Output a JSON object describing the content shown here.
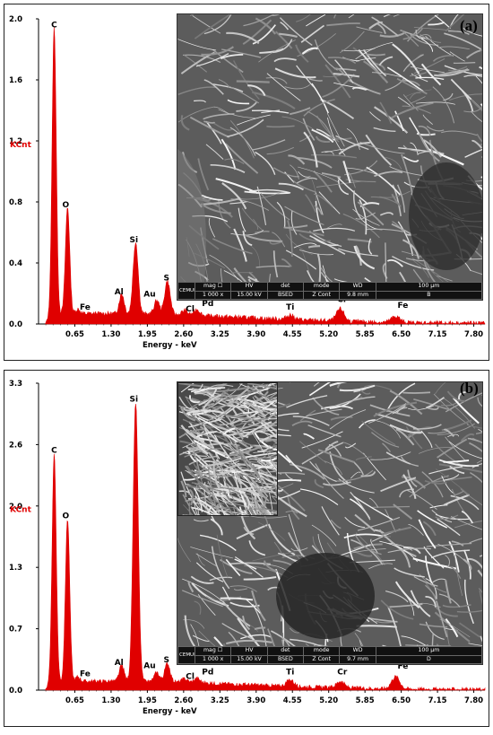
{
  "chart_data": [
    {
      "type": "area",
      "panel_label": "(a)",
      "ylabel": "KCnt",
      "xlabel": "Energy - keV",
      "xlim": [
        0,
        8.0
      ],
      "ylim": [
        0,
        2.0
      ],
      "xticks": [
        "0.65",
        "1.30",
        "1.95",
        "2.60",
        "3.25",
        "3.90",
        "4.55",
        "5.20",
        "5.85",
        "6.50",
        "7.15",
        "7.80"
      ],
      "yticks": [
        "0.0",
        "0.4",
        "0.8",
        "1.2",
        "1.6",
        "2.0"
      ],
      "color": "#e00000",
      "baseline": 0.05,
      "peaks": [
        {
          "element": "C",
          "energy": 0.28,
          "height": 1.88
        },
        {
          "element": "O",
          "energy": 0.52,
          "height": 0.7
        },
        {
          "element": "Fe",
          "energy": 0.705,
          "height": 0.03
        },
        {
          "element": "Al",
          "energy": 1.49,
          "height": 0.13
        },
        {
          "element": "Si",
          "energy": 1.74,
          "height": 0.47
        },
        {
          "element": "Au",
          "energy": 2.12,
          "height": 0.09
        },
        {
          "element": "S",
          "energy": 2.31,
          "height": 0.22
        },
        {
          "element": "Cl",
          "energy": 2.62,
          "height": 0.03
        },
        {
          "element": "Pd",
          "energy": 2.84,
          "height": 0.04
        },
        {
          "element": "Ti",
          "energy": 4.51,
          "height": 0.03
        },
        {
          "element": "Cr",
          "energy": 5.41,
          "height": 0.08
        },
        {
          "element": "Fe",
          "energy": 6.4,
          "height": 0.04
        }
      ],
      "sem_bar": {
        "logo": "CEMUP",
        "headers": [
          "mag ☐",
          "HV",
          "det",
          "mode",
          "WD",
          "100 µm"
        ],
        "values": [
          "1 000 x",
          "15.00 kV",
          "BSED",
          "Z Cont",
          "9.8 mm",
          "B"
        ]
      }
    },
    {
      "type": "area",
      "panel_label": "(b)",
      "ylabel": "KCnt",
      "xlabel": "Energy - keV",
      "xlim": [
        0,
        8.0
      ],
      "ylim": [
        0,
        3.3
      ],
      "xticks": [
        "0.65",
        "1.30",
        "1.95",
        "2.60",
        "3.25",
        "3.90",
        "4.55",
        "5.20",
        "5.85",
        "6.50",
        "7.15",
        "7.80"
      ],
      "yticks": [
        "0.0",
        "0.7",
        "1.3",
        "2.0",
        "2.6",
        "3.3"
      ],
      "color": "#e00000",
      "baseline": 0.07,
      "peaks": [
        {
          "element": "C",
          "energy": 0.28,
          "height": 2.45
        },
        {
          "element": "O",
          "energy": 0.52,
          "height": 1.75
        },
        {
          "element": "Fe",
          "energy": 0.705,
          "height": 0.05
        },
        {
          "element": "Al",
          "energy": 1.49,
          "height": 0.17
        },
        {
          "element": "Si",
          "energy": 1.74,
          "height": 3.0
        },
        {
          "element": "Au",
          "energy": 2.12,
          "height": 0.1
        },
        {
          "element": "S",
          "energy": 2.31,
          "height": 0.2
        },
        {
          "element": "Cl",
          "energy": 2.62,
          "height": 0.04
        },
        {
          "element": "Pd",
          "energy": 2.84,
          "height": 0.05
        },
        {
          "element": "Ti",
          "energy": 4.51,
          "height": 0.07
        },
        {
          "element": "Cr",
          "energy": 5.41,
          "height": 0.07
        },
        {
          "element": "Fe",
          "energy": 6.4,
          "height": 0.13
        }
      ],
      "sem_bar": {
        "logo": "CEMUP",
        "headers": [
          "mag ☐",
          "HV",
          "det",
          "mode",
          "WD",
          "100 µm"
        ],
        "values": [
          "1 000 x",
          "15.00 kV",
          "BSED",
          "Z Cont",
          "9.7 mm",
          "D"
        ]
      }
    }
  ]
}
